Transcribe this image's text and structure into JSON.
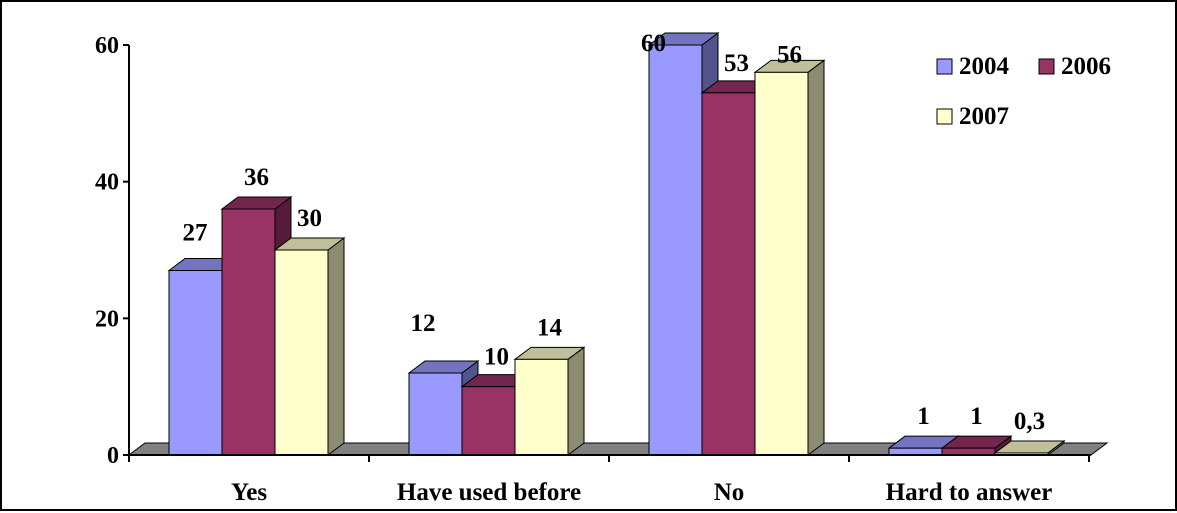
{
  "chart_data": {
    "type": "bar",
    "style": "3d-clustered-column",
    "title": "",
    "xlabel": "",
    "ylabel": "",
    "categories": [
      "Yes",
      "Have used before",
      "No",
      "Hard to answer"
    ],
    "series": [
      {
        "name": "2004",
        "values": [
          27,
          12,
          60,
          1
        ],
        "labels": [
          "27",
          "12",
          "60",
          "1"
        ],
        "color": "#9999FF"
      },
      {
        "name": "2006",
        "values": [
          36,
          10,
          53,
          1
        ],
        "labels": [
          "36",
          "10",
          "53",
          "1"
        ],
        "color": "#993366"
      },
      {
        "name": "2007",
        "values": [
          30,
          14,
          56,
          0.3
        ],
        "labels": [
          "30",
          "14",
          "56",
          "0,3"
        ],
        "color": "#FFFFCC"
      }
    ],
    "y_ticks": [
      "0",
      "20",
      "40",
      "60"
    ],
    "ylim": [
      0,
      60
    ],
    "grid": false,
    "legend": {
      "position": "top-right"
    },
    "floor_color": "#808080"
  }
}
